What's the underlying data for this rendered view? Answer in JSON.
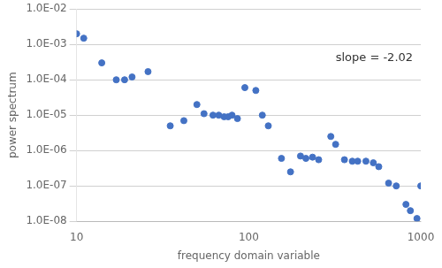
{
  "chart_data": {
    "type": "scatter",
    "xlabel": "frequency domain variable",
    "ylabel": "power spectrum",
    "x": [
      10,
      11,
      14,
      17,
      19,
      21,
      26,
      35,
      42,
      50,
      55,
      62,
      67,
      72,
      76,
      80,
      86,
      95,
      110,
      120,
      130,
      155,
      175,
      200,
      215,
      235,
      255,
      300,
      320,
      360,
      400,
      430,
      480,
      530,
      570,
      650,
      720,
      820,
      870,
      950,
      1000
    ],
    "values": [
      0.002,
      0.0015,
      0.0003,
      0.0001,
      0.0001,
      0.00012,
      0.00017,
      5e-06,
      7e-06,
      2e-05,
      1.1e-05,
      1e-05,
      1e-05,
      9e-06,
      9e-06,
      1e-05,
      8e-06,
      6e-05,
      5e-05,
      1e-05,
      5e-06,
      6e-07,
      2.5e-07,
      7e-07,
      6e-07,
      6.5e-07,
      5.5e-07,
      2.5e-06,
      1.5e-06,
      5.5e-07,
      5e-07,
      5e-07,
      5e-07,
      4.5e-07,
      3.5e-07,
      1.2e-07,
      1e-07,
      3e-08,
      2e-08,
      1.2e-08,
      1e-07
    ],
    "color": "#4472C4",
    "marker": "circle",
    "log": true,
    "xlim": [
      10,
      1000
    ],
    "ylim": [
      1e-08,
      0.01
    ],
    "xticks": [
      10,
      100,
      1000
    ],
    "yticks": [
      {
        "value": 1e-08,
        "label": "1.0E-08"
      },
      {
        "value": 1e-07,
        "label": "1.0E-07"
      },
      {
        "value": 1e-06,
        "label": "1.0E-06"
      },
      {
        "value": 1e-05,
        "label": "1.0E-05"
      },
      {
        "value": 0.0001,
        "label": "1.0E-04"
      },
      {
        "value": 0.001,
        "label": "1.0E-03"
      },
      {
        "value": 0.01,
        "label": "1.0E-02"
      }
    ],
    "grid": "y",
    "annotations": [
      {
        "text": "slope = -2.02",
        "x": 320,
        "y": 0.0004
      }
    ]
  }
}
